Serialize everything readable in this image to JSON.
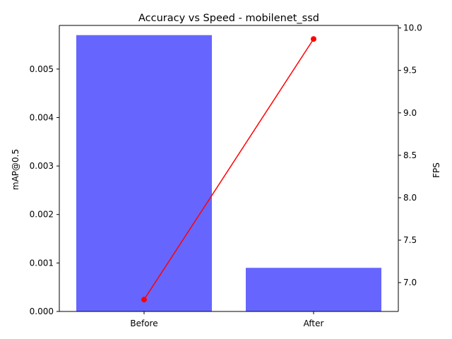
{
  "chart_data": {
    "type": "bar",
    "title": "Accuracy vs Speed - mobilenet_ssd",
    "categories": [
      "Before",
      "After"
    ],
    "xlabel": "",
    "left_axis": {
      "label": "mAP@0.5",
      "ylim": [
        0,
        0.0059
      ],
      "ticks": [
        0.0,
        0.001,
        0.002,
        0.003,
        0.004,
        0.005
      ],
      "tick_labels": [
        "0.000",
        "0.001",
        "0.002",
        "0.003",
        "0.004",
        "0.005"
      ]
    },
    "right_axis": {
      "label": "FPS",
      "ylim": [
        6.66,
        10.03
      ],
      "ticks": [
        7.0,
        7.5,
        8.0,
        8.5,
        9.0,
        9.5,
        10.0
      ],
      "tick_labels": [
        "7.0",
        "7.5",
        "8.0",
        "8.5",
        "9.0",
        "9.5",
        "10.0"
      ]
    },
    "series": [
      {
        "type": "bar",
        "axis": "left",
        "values": [
          0.0057,
          0.0009
        ],
        "color": "#6666ff"
      },
      {
        "type": "line",
        "axis": "right",
        "values": [
          6.8,
          9.87
        ],
        "color": "#ff0000"
      }
    ],
    "grid": false
  }
}
